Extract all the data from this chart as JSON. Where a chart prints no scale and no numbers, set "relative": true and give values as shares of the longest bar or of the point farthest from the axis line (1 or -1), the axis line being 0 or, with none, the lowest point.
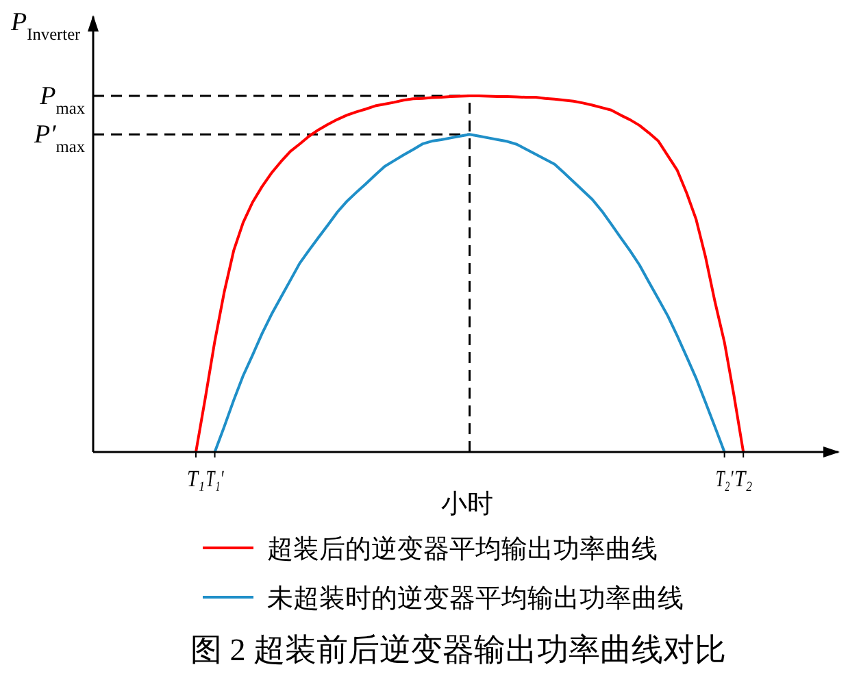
{
  "chart_data": {
    "type": "line",
    "title": "图 2 超装前后逆变器输出功率曲线对比",
    "xlabel": "小时",
    "ylabel": "P$_{Inverter}$",
    "relative": true,
    "categories": [
      "T₁",
      null,
      "T₁′",
      null,
      null,
      null,
      null,
      null,
      null,
      null,
      null,
      null,
      null,
      null,
      null,
      null,
      null,
      null,
      null,
      null,
      null,
      null,
      null,
      null,
      null,
      null,
      null,
      null,
      null,
      null,
      null,
      null,
      null,
      null,
      null,
      null,
      null,
      null,
      null,
      null,
      null,
      null,
      null,
      null,
      null,
      null,
      null,
      null,
      null,
      null,
      null,
      null,
      null,
      null,
      null,
      null,
      "T₂′",
      null,
      "T₂"
    ],
    "legend": "bottom",
    "ref_lines": [
      {
        "axis": "y",
        "value": 1,
        "label": "P$_{max}$",
        "line_style": "dashed",
        "color": "#000000"
      },
      {
        "axis": "y",
        "value": 0.892,
        "label": "P′$_{max}$",
        "line_style": "dashed",
        "color": "#000000"
      }
    ],
    "series": [
      {
        "name": "超装后的逆变器平均输出功率曲线",
        "color": "#ff0000",
        "values": [
          0,
          0.152,
          0.311,
          0.449,
          0.565,
          0.644,
          0.701,
          0.745,
          0.783,
          0.815,
          0.844,
          0.865,
          0.887,
          0.905,
          0.92,
          0.934,
          0.946,
          0.955,
          0.963,
          0.972,
          0.977,
          0.982,
          0.988,
          0.992,
          0.993,
          0.995,
          0.996,
          0.998,
          0.999,
          1,
          1,
          0.999,
          0.998,
          0.998,
          0.997,
          0.996,
          0.996,
          0.993,
          0.991,
          0.988,
          0.985,
          0.98,
          0.974,
          0.967,
          0.96,
          0.946,
          0.933,
          0.917,
          0.896,
          0.873,
          0.832,
          0.791,
          0.727,
          0.653,
          0.547,
          0.421,
          0.308,
          0.16,
          0
        ]
      },
      {
        "name": "未超装时的逆变器平均输出功率曲线",
        "color": "#1f8fc8",
        "values": [
          null,
          null,
          0,
          0.071,
          0.145,
          0.214,
          0.272,
          0.332,
          0.386,
          0.434,
          0.482,
          0.53,
          0.567,
          0.603,
          0.638,
          0.674,
          0.704,
          0.729,
          0.753,
          0.778,
          0.802,
          0.818,
          0.834,
          0.849,
          0.865,
          0.873,
          0.877,
          0.882,
          0.887,
          0.892,
          0.887,
          0.882,
          0.877,
          0.872,
          0.864,
          0.85,
          0.836,
          0.822,
          0.808,
          0.784,
          0.759,
          0.734,
          0.709,
          0.677,
          0.64,
          0.602,
          0.565,
          0.525,
          0.477,
          0.43,
          0.382,
          0.326,
          0.267,
          0.207,
          0.139,
          0.07,
          0,
          null,
          null
        ]
      }
    ]
  }
}
